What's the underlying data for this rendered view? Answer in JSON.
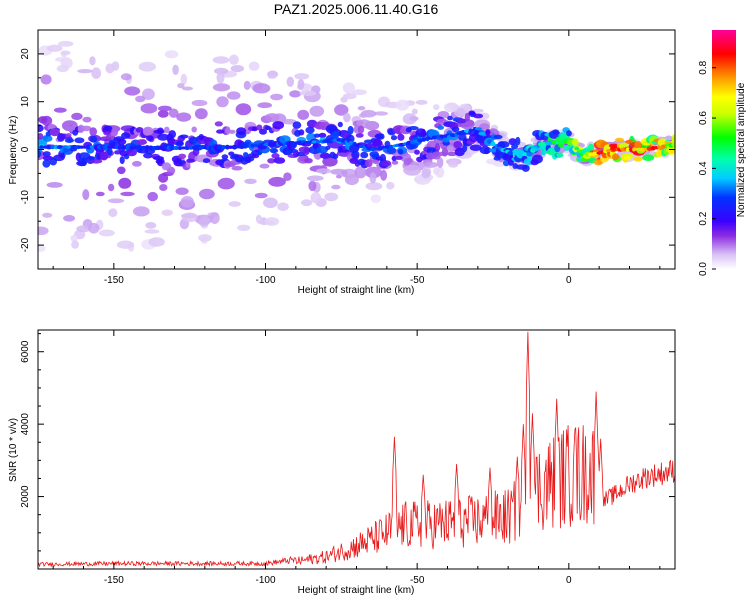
{
  "title": "PAZ1.2025.006.11.40.G16",
  "spectrogram": {
    "type": "heatmap",
    "xlabel": "Height of straight line (km)",
    "ylabel": "Frequency (Hz)",
    "xlim": [
      -175,
      35
    ],
    "ylim": [
      -25,
      25
    ],
    "x_ticks": [
      "-150",
      "-100",
      "-50",
      "0"
    ],
    "y_ticks": [
      "-20",
      "-10",
      "0",
      "10",
      "20"
    ],
    "colorbar_label": "Normalized spectral amplitude",
    "colorbar_ticks": [
      "0.0",
      "0.2",
      "0.4",
      "0.6",
      "0.8"
    ],
    "colorbar_range": [
      0,
      0.95
    ],
    "centerline": [
      [
        -175,
        0.5
      ],
      [
        -150,
        0.5
      ],
      [
        -130,
        0.3
      ],
      [
        -110,
        0.5
      ],
      [
        -100,
        1
      ],
      [
        -85,
        1.5
      ],
      [
        -75,
        2
      ],
      [
        -65,
        0
      ],
      [
        -55,
        1
      ],
      [
        -45,
        2.5
      ],
      [
        -38,
        3
      ],
      [
        -30,
        4.5
      ],
      [
        -27,
        2
      ],
      [
        -22,
        0
      ],
      [
        -18,
        -1
      ],
      [
        -13,
        -1
      ],
      [
        -10,
        1
      ],
      [
        -5,
        1.5
      ],
      [
        0,
        1.5
      ],
      [
        5,
        -1
      ],
      [
        8,
        -1
      ],
      [
        15,
        0
      ],
      [
        25,
        0
      ],
      [
        35,
        1
      ]
    ],
    "amplitude_along_track": [
      [
        -175,
        0.35
      ],
      [
        -150,
        0.3
      ],
      [
        -120,
        0.3
      ],
      [
        -100,
        0.32
      ],
      [
        -80,
        0.33
      ],
      [
        -60,
        0.32
      ],
      [
        -45,
        0.33
      ],
      [
        -30,
        0.35
      ],
      [
        -20,
        0.38
      ],
      [
        -12,
        0.42
      ],
      [
        -5,
        0.5
      ],
      [
        0,
        0.52
      ],
      [
        5,
        0.7
      ],
      [
        10,
        0.85
      ],
      [
        20,
        0.9
      ],
      [
        30,
        0.82
      ],
      [
        35,
        0.65
      ]
    ],
    "spread_hz_along_track": [
      [
        -175,
        22
      ],
      [
        -150,
        22
      ],
      [
        -120,
        20
      ],
      [
        -100,
        18
      ],
      [
        -80,
        14
      ],
      [
        -60,
        10
      ],
      [
        -45,
        8
      ],
      [
        -30,
        5
      ],
      [
        -20,
        3
      ],
      [
        0,
        2
      ],
      [
        35,
        1.5
      ]
    ]
  },
  "snr": {
    "type": "line",
    "xlabel": "Height of straight line (km)",
    "ylabel": "SNR (10 * v/v)",
    "xlim": [
      -175,
      35
    ],
    "ylim": [
      0,
      6600
    ],
    "x_ticks": [
      "-150",
      "-100",
      "-50",
      "0"
    ],
    "y_ticks": [
      "2000",
      "4000",
      "6000"
    ],
    "color": "#e8191a",
    "envelope": [
      [
        -175,
        130
      ],
      [
        -150,
        150
      ],
      [
        -120,
        150
      ],
      [
        -100,
        150
      ],
      [
        -90,
        260
      ],
      [
        -80,
        420
      ],
      [
        -70,
        800
      ],
      [
        -62,
        1150
      ],
      [
        -55,
        1500
      ],
      [
        -45,
        1550
      ],
      [
        -35,
        1600
      ],
      [
        -28,
        1700
      ],
      [
        -20,
        1800
      ],
      [
        -16,
        2100
      ],
      [
        -14,
        2400
      ],
      [
        -12,
        2700
      ],
      [
        -8,
        2900
      ],
      [
        -4,
        3100
      ],
      [
        0,
        3250
      ],
      [
        5,
        3300
      ],
      [
        9,
        3300
      ],
      [
        11,
        1900
      ],
      [
        15,
        2100
      ],
      [
        20,
        2400
      ],
      [
        25,
        2600
      ],
      [
        30,
        2700
      ],
      [
        35,
        2800
      ]
    ],
    "spikes": [
      [
        -57.5,
        3650
      ],
      [
        -48,
        2600
      ],
      [
        -37,
        2900
      ],
      [
        -26,
        2800
      ],
      [
        -17,
        3100
      ],
      [
        -15,
        4000
      ],
      [
        -13.5,
        6550
      ],
      [
        -12,
        4300
      ],
      [
        -4,
        4700
      ],
      [
        2,
        3850
      ],
      [
        9,
        4900
      ],
      [
        10.5,
        3600
      ]
    ]
  }
}
